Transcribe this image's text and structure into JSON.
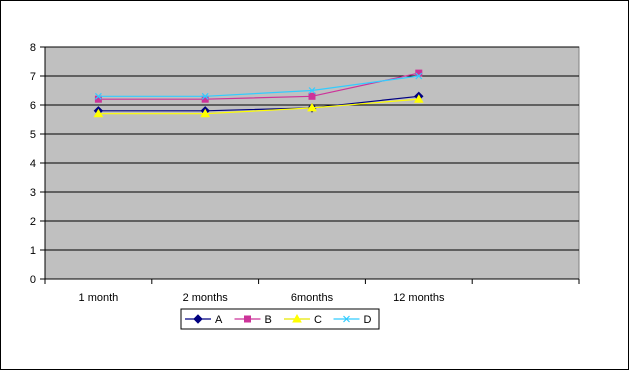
{
  "chart_data": {
    "type": "line",
    "title": "",
    "xlabel": "",
    "ylabel": "",
    "categories": [
      "1 month",
      "2 months",
      "6months",
      "12 months"
    ],
    "extra_empty_category_slots": 1,
    "ylim": [
      0,
      8
    ],
    "yticks": [
      0,
      1,
      2,
      3,
      4,
      5,
      6,
      7,
      8
    ],
    "grid": true,
    "plot_background": "#c0c0c0",
    "legend_position": "bottom",
    "series": [
      {
        "name": "A",
        "values": [
          5.8,
          5.8,
          5.9,
          6.3
        ],
        "color": "#000080",
        "marker": "diamond"
      },
      {
        "name": "B",
        "values": [
          6.2,
          6.2,
          6.3,
          7.1
        ],
        "color": "#cc3399",
        "marker": "square"
      },
      {
        "name": "C",
        "values": [
          5.7,
          5.7,
          5.9,
          6.2
        ],
        "color": "#ffff00",
        "marker": "triangle"
      },
      {
        "name": "D",
        "values": [
          6.3,
          6.3,
          6.5,
          7.0
        ],
        "color": "#33ccff",
        "marker": "x"
      }
    ]
  }
}
